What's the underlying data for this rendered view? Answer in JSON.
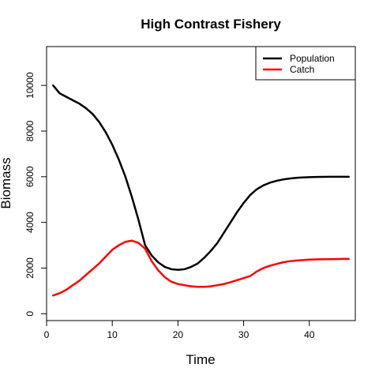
{
  "chart_data": {
    "type": "line",
    "title": "High Contrast Fishery",
    "xlabel": "Time",
    "ylabel": "Biomass",
    "xlim": [
      0,
      47
    ],
    "ylim": [
      -300,
      11700
    ],
    "xticks": [
      0,
      10,
      20,
      30,
      40
    ],
    "yticks": [
      0,
      2000,
      4000,
      6000,
      8000,
      10000
    ],
    "grid": false,
    "legend_position": "top-right",
    "x": [
      1,
      2,
      3,
      4,
      5,
      6,
      7,
      8,
      9,
      10,
      11,
      12,
      13,
      14,
      15,
      16,
      17,
      18,
      19,
      20,
      21,
      22,
      23,
      24,
      25,
      26,
      27,
      28,
      29,
      30,
      31,
      32,
      33,
      34,
      35,
      36,
      37,
      38,
      39,
      40,
      41,
      42,
      43,
      44,
      45,
      46
    ],
    "series": [
      {
        "name": "Population",
        "color": "#000000",
        "values": [
          10000,
          9650,
          9500,
          9350,
          9200,
          9000,
          8750,
          8400,
          7950,
          7400,
          6750,
          6000,
          5100,
          4100,
          3000,
          2550,
          2250,
          2050,
          1950,
          1920,
          1950,
          2050,
          2200,
          2450,
          2750,
          3100,
          3550,
          4000,
          4450,
          4850,
          5200,
          5450,
          5620,
          5740,
          5820,
          5880,
          5920,
          5950,
          5970,
          5980,
          5990,
          5995,
          6000,
          6000,
          6000,
          6000
        ]
      },
      {
        "name": "Catch",
        "color": "#ff0000",
        "values": [
          800,
          900,
          1050,
          1250,
          1450,
          1700,
          1950,
          2200,
          2500,
          2800,
          3000,
          3150,
          3200,
          3100,
          2850,
          2300,
          1900,
          1600,
          1400,
          1300,
          1250,
          1200,
          1180,
          1180,
          1200,
          1250,
          1300,
          1380,
          1470,
          1560,
          1650,
          1850,
          2000,
          2100,
          2180,
          2250,
          2300,
          2330,
          2350,
          2370,
          2380,
          2385,
          2390,
          2395,
          2400,
          2400
        ]
      }
    ]
  }
}
